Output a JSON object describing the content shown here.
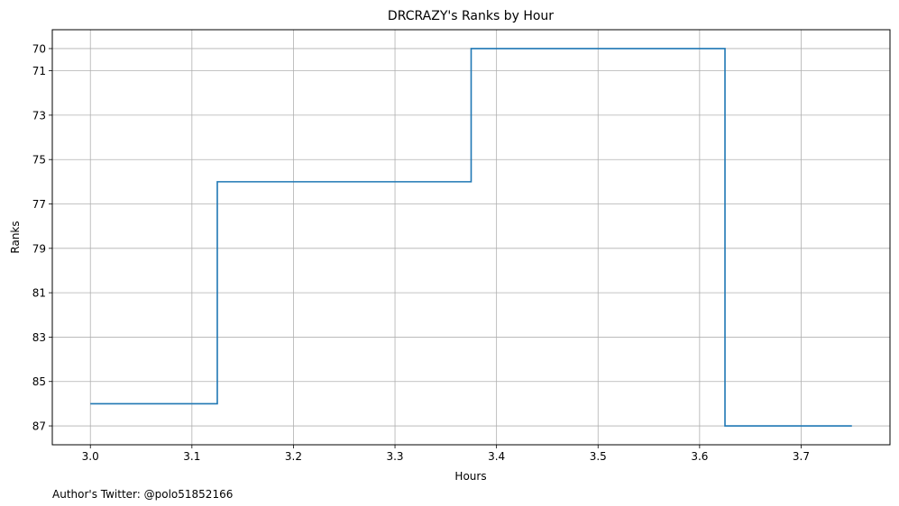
{
  "chart_data": {
    "type": "line",
    "drawstyle": "steps-mid",
    "title": "DRCRAZY's Ranks by Hour",
    "xlabel": "Hours",
    "ylabel": "Ranks",
    "footnote": "Author's Twitter: @polo51852166",
    "x": [
      3.0,
      3.25,
      3.5,
      3.75
    ],
    "y": [
      86,
      76,
      70,
      87
    ],
    "xlim": [
      2.9625,
      3.7875
    ],
    "ylim": [
      87.85,
      69.15
    ],
    "y_inverted": true,
    "xticks": [
      3.0,
      3.1,
      3.2,
      3.3,
      3.4,
      3.5,
      3.6,
      3.7
    ],
    "xtick_labels": [
      "3.0",
      "3.1",
      "3.2",
      "3.3",
      "3.4",
      "3.5",
      "3.6",
      "3.7"
    ],
    "yticks": [
      70,
      71,
      73,
      75,
      77,
      79,
      81,
      83,
      85,
      87
    ],
    "ytick_labels": [
      "70",
      "71",
      "73",
      "75",
      "77",
      "79",
      "81",
      "83",
      "85",
      "87"
    ],
    "grid": true,
    "line_color": "#1f77b4",
    "grid_color": "#b0b0b0"
  }
}
